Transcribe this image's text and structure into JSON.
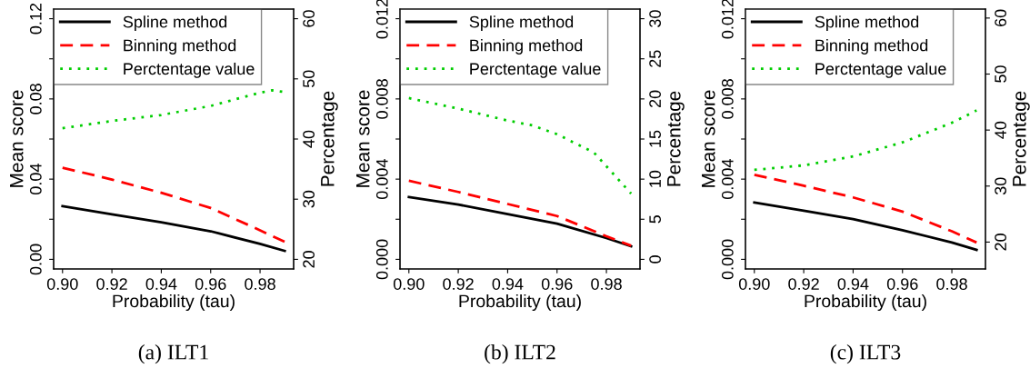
{
  "chart_data": [
    {
      "type": "line",
      "xlabel": "Probability (tau)",
      "ylabel": "Mean score",
      "y2label": "Percentage",
      "annotations": [
        "(a) ILT1"
      ],
      "xlim": [
        0.8964,
        0.9936
      ],
      "xticks": [
        {
          "value": 0.9,
          "label": "0.90"
        },
        {
          "value": 0.92,
          "label": "0.92"
        },
        {
          "value": 0.94,
          "label": "0.94"
        },
        {
          "value": 0.96,
          "label": "0.96"
        },
        {
          "value": 0.98,
          "label": "0.98"
        }
      ],
      "ylim": [
        -0.0048,
        0.1248
      ],
      "yticks": [
        {
          "value": 0,
          "label": "0.00"
        },
        {
          "value": 0.02,
          "label": null
        },
        {
          "value": 0.04,
          "label": "0.04"
        },
        {
          "value": 0.06,
          "label": null
        },
        {
          "value": 0.08,
          "label": "0.08"
        },
        {
          "value": 0.1,
          "label": null
        },
        {
          "value": 0.12,
          "label": "0.12"
        }
      ],
      "y2lim": [
        18.4,
        61.6
      ],
      "y2ticks": [
        20,
        30,
        40,
        50,
        60
      ],
      "legend": "top left",
      "grid": false,
      "series": [
        {
          "name": "Spline method",
          "color": "#000000",
          "line_style": "solid",
          "x": [
            0.9,
            0.92,
            0.94,
            0.96,
            0.98,
            0.99
          ],
          "values": [
            0.0265,
            0.0225,
            0.0185,
            0.014,
            0.0077,
            0.0042
          ]
        },
        {
          "name": "Binning method",
          "color": "#ff0000",
          "line_style": "dashed",
          "x": [
            0.9,
            0.92,
            0.94,
            0.96,
            0.98,
            0.99
          ],
          "values": [
            0.0457,
            0.0398,
            0.0332,
            0.0256,
            0.0145,
            0.0087
          ]
        },
        {
          "name": "Perctentage value",
          "color": "#00cd00",
          "line_style": "dotted",
          "axis": "y2",
          "x": [
            0.9,
            0.92,
            0.94,
            0.96,
            0.98,
            0.985,
            0.99
          ],
          "values": [
            41.8,
            43.0,
            44.0,
            45.5,
            47.7,
            48.1,
            47.8
          ]
        }
      ]
    },
    {
      "type": "line",
      "xlabel": "Probability (tau)",
      "ylabel": "Mean score",
      "y2label": "Percentage",
      "annotations": [
        "(b) ILT2"
      ],
      "xlim": [
        0.8964,
        0.9936
      ],
      "xticks": [
        {
          "value": 0.9,
          "label": "0.90"
        },
        {
          "value": 0.92,
          "label": "0.92"
        },
        {
          "value": 0.94,
          "label": "0.94"
        },
        {
          "value": 0.96,
          "label": "0.96"
        },
        {
          "value": 0.98,
          "label": "0.98"
        }
      ],
      "ylim": [
        -0.00048,
        0.01248
      ],
      "yticks": [
        {
          "value": 0,
          "label": "0.000"
        },
        {
          "value": 0.002,
          "label": null
        },
        {
          "value": 0.004,
          "label": "0.004"
        },
        {
          "value": 0.006,
          "label": null
        },
        {
          "value": 0.008,
          "label": "0.008"
        },
        {
          "value": 0.01,
          "label": null
        },
        {
          "value": 0.012,
          "label": "0.012"
        }
      ],
      "y2lim": [
        -1.2,
        31.2
      ],
      "y2ticks": [
        0,
        5,
        10,
        15,
        20,
        25,
        30
      ],
      "legend": "top left",
      "grid": false,
      "series": [
        {
          "name": "Spline method",
          "color": "#000000",
          "line_style": "solid",
          "x": [
            0.9,
            0.92,
            0.94,
            0.96,
            0.98,
            0.99
          ],
          "values": [
            0.00311,
            0.00273,
            0.00226,
            0.00178,
            0.00106,
            0.00065
          ]
        },
        {
          "name": "Binning method",
          "color": "#ff0000",
          "line_style": "dashed",
          "x": [
            0.9,
            0.92,
            0.94,
            0.96,
            0.98,
            0.99
          ],
          "values": [
            0.00392,
            0.00336,
            0.00276,
            0.00216,
            0.00115,
            0.00068
          ]
        },
        {
          "name": "Perctentage value",
          "color": "#00cd00",
          "line_style": "dotted",
          "axis": "y2",
          "x": [
            0.9,
            0.92,
            0.94,
            0.95,
            0.96,
            0.975,
            0.98,
            0.985,
            0.99
          ],
          "values": [
            20.1,
            18.8,
            17.3,
            16.7,
            15.6,
            13.3,
            11.6,
            9.9,
            8.2
          ]
        }
      ]
    },
    {
      "type": "line",
      "xlabel": "Probability (tau)",
      "ylabel": "Mean score",
      "y2label": "Percentage",
      "annotations": [
        "(c) ILT3"
      ],
      "xlim": [
        0.8964,
        0.9936
      ],
      "xticks": [
        {
          "value": 0.9,
          "label": "0.90"
        },
        {
          "value": 0.92,
          "label": "0.92"
        },
        {
          "value": 0.94,
          "label": "0.94"
        },
        {
          "value": 0.96,
          "label": "0.96"
        },
        {
          "value": 0.98,
          "label": "0.98"
        }
      ],
      "ylim": [
        -0.00048,
        0.01248
      ],
      "yticks": [
        {
          "value": 0,
          "label": "0.000"
        },
        {
          "value": 0.002,
          "label": null
        },
        {
          "value": 0.004,
          "label": "0.004"
        },
        {
          "value": 0.006,
          "label": null
        },
        {
          "value": 0.008,
          "label": "0.008"
        },
        {
          "value": 0.01,
          "label": null
        },
        {
          "value": 0.012,
          "label": "0.012"
        }
      ],
      "y2lim": [
        15.2,
        61.6
      ],
      "y2ticks": [
        20,
        30,
        40,
        50,
        60
      ],
      "legend": "top left",
      "grid": false,
      "series": [
        {
          "name": "Spline method",
          "color": "#000000",
          "line_style": "solid",
          "x": [
            0.9,
            0.92,
            0.94,
            0.96,
            0.98,
            0.99
          ],
          "values": [
            0.00283,
            0.00243,
            0.00201,
            0.00145,
            0.00084,
            0.00047
          ]
        },
        {
          "name": "Binning method",
          "color": "#ff0000",
          "line_style": "dashed",
          "x": [
            0.9,
            0.92,
            0.94,
            0.96,
            0.98,
            0.99
          ],
          "values": [
            0.00422,
            0.00367,
            0.00309,
            0.00238,
            0.0014,
            0.00084
          ]
        },
        {
          "name": "Perctentage value",
          "color": "#00cd00",
          "line_style": "dotted",
          "axis": "y2",
          "x": [
            0.9,
            0.92,
            0.94,
            0.96,
            0.98,
            0.99
          ],
          "values": [
            32.9,
            33.7,
            35.3,
            37.8,
            41.3,
            43.5
          ]
        }
      ]
    }
  ]
}
